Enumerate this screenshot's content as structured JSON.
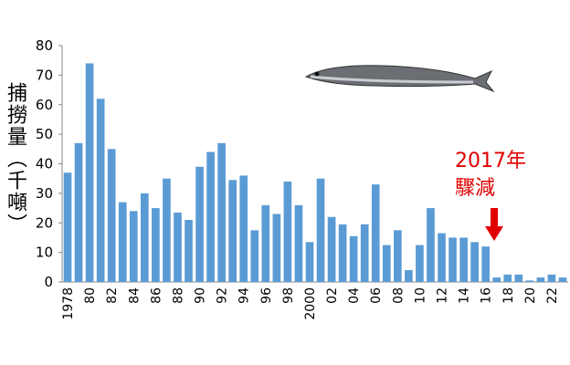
{
  "chart_data": {
    "type": "bar",
    "y_label": "捕撈量（千噸）",
    "annotation": [
      "2017年",
      "驟減"
    ],
    "color": "#5b9bd5",
    "categories": [
      "1978",
      null,
      "80",
      null,
      "82",
      null,
      "84",
      null,
      "86",
      null,
      "88",
      null,
      "90",
      null,
      "92",
      null,
      "94",
      null,
      "96",
      null,
      "98",
      null,
      "2000",
      null,
      "02",
      null,
      "04",
      null,
      "06",
      null,
      "08",
      null,
      "10",
      null,
      "12",
      null,
      "14",
      null,
      "16",
      null,
      "18",
      null,
      "20",
      null,
      "22",
      null
    ],
    "values": [
      37,
      47,
      74,
      62,
      45,
      27,
      24,
      30,
      25,
      35,
      23.5,
      21,
      39,
      44,
      47,
      34.5,
      36,
      17.5,
      26,
      23,
      34,
      26,
      13.5,
      35,
      22,
      19.5,
      15.5,
      19.5,
      33,
      12.5,
      17.5,
      4,
      12.5,
      25,
      16.5,
      15,
      15,
      13.5,
      12,
      1.5,
      2.5,
      2.5,
      0.5,
      1.5,
      2.5,
      1.5
    ],
    "ylim": [
      0,
      80
    ],
    "yticks": [
      0,
      10,
      20,
      30,
      40,
      50,
      60,
      70,
      80
    ]
  }
}
